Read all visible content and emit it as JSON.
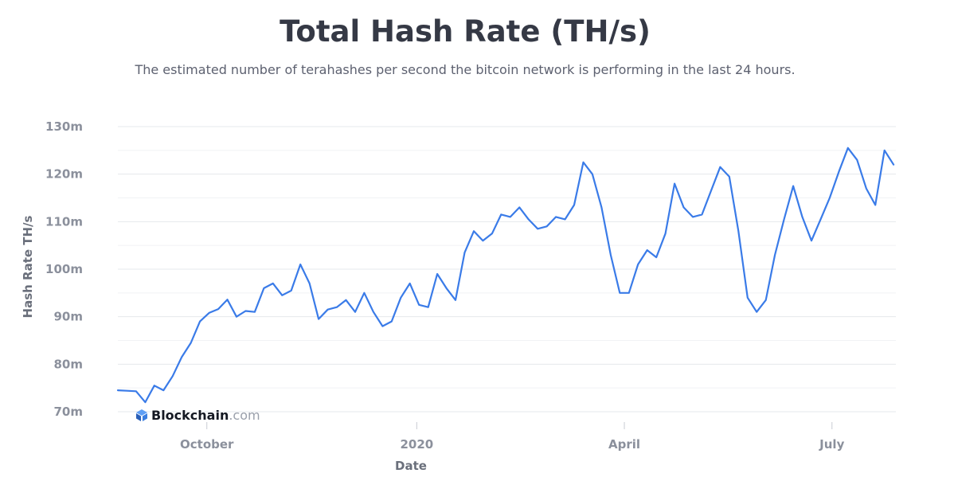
{
  "chart_data": {
    "type": "line",
    "title": "Total Hash Rate (TH/s)",
    "subtitle": "The estimated number of terahashes per second the bitcoin network is performing in the last 24 hours.",
    "xlabel": "Date",
    "ylabel": "Hash Rate TH/s",
    "ylim": [
      70,
      130
    ],
    "yticks": [
      70,
      80,
      90,
      100,
      110,
      120,
      130
    ],
    "ytick_labels": [
      "70m",
      "80m",
      "90m",
      "100m",
      "110m",
      "120m",
      "130m"
    ],
    "xlim": [
      "2019-08-23",
      "2020-07-29"
    ],
    "xticks": [
      "2019-10-01",
      "2020-01-01",
      "2020-04-01",
      "2020-07-01"
    ],
    "xtick_labels": [
      "October",
      "2020",
      "April",
      "July"
    ],
    "grid": true,
    "legend": "none",
    "line_color": "#3a7be8",
    "series": [
      {
        "x": [
          "2019-08-23",
          "2019-08-27",
          "2019-08-31",
          "2019-09-04",
          "2019-09-08",
          "2019-09-12",
          "2019-09-16",
          "2019-09-20",
          "2019-09-24",
          "2019-09-28",
          "2019-10-02",
          "2019-10-06",
          "2019-10-10",
          "2019-10-14",
          "2019-10-18",
          "2019-10-22",
          "2019-10-26",
          "2019-10-30",
          "2019-11-03",
          "2019-11-07",
          "2019-11-11",
          "2019-11-15",
          "2019-11-19",
          "2019-11-23",
          "2019-11-27",
          "2019-12-01",
          "2019-12-05",
          "2019-12-09",
          "2019-12-13",
          "2019-12-17",
          "2019-12-21",
          "2019-12-25",
          "2019-12-29",
          "2020-01-02",
          "2020-01-06",
          "2020-01-10",
          "2020-01-14",
          "2020-01-18",
          "2020-01-22",
          "2020-01-26",
          "2020-01-30",
          "2020-02-03",
          "2020-02-07",
          "2020-02-11",
          "2020-02-15",
          "2020-02-19",
          "2020-02-23",
          "2020-02-27",
          "2020-03-02",
          "2020-03-06",
          "2020-03-10",
          "2020-03-14",
          "2020-03-18",
          "2020-03-22",
          "2020-03-26",
          "2020-03-30",
          "2020-04-03",
          "2020-04-07",
          "2020-04-11",
          "2020-04-15",
          "2020-04-19",
          "2020-04-23",
          "2020-04-27",
          "2020-05-01",
          "2020-05-05",
          "2020-05-09",
          "2020-05-13",
          "2020-05-17",
          "2020-05-21",
          "2020-05-25",
          "2020-05-29",
          "2020-06-02",
          "2020-06-06",
          "2020-06-10",
          "2020-06-14",
          "2020-06-18",
          "2020-06-22",
          "2020-06-26",
          "2020-06-30",
          "2020-07-04",
          "2020-07-08",
          "2020-07-12",
          "2020-07-16",
          "2020-07-20",
          "2020-07-24",
          "2020-07-28"
        ],
        "values": [
          74.5,
          74.4,
          74.3,
          72.0,
          75.5,
          74.5,
          77.5,
          81.5,
          84.5,
          89.0,
          90.8,
          91.6,
          93.6,
          90.0,
          91.2,
          91.0,
          96.0,
          97.0,
          94.5,
          95.5,
          101.0,
          97.0,
          89.5,
          91.5,
          92.0,
          93.5,
          91.0,
          95.0,
          91.0,
          88.0,
          89.0,
          94.0,
          97.0,
          92.5,
          92.0,
          99.0,
          96.0,
          93.5,
          103.5,
          108.0,
          106.0,
          107.5,
          111.5,
          111.0,
          113.0,
          110.5,
          108.5,
          109.0,
          111.0,
          110.5,
          113.5,
          122.5,
          120.0,
          113.0,
          103.0,
          95.0,
          95.0,
          101.0,
          104.0,
          102.5,
          107.5,
          118.0,
          113.0,
          111.0,
          111.5,
          116.5,
          121.5,
          119.5,
          108.0,
          94.0,
          91.0,
          93.5,
          103.0,
          110.5,
          117.5,
          111.0,
          106.0,
          110.5,
          115.0,
          120.5,
          125.5,
          123.0,
          117.0,
          113.5,
          125.0,
          122.0
        ]
      }
    ]
  },
  "branding": {
    "name": "Blockchain",
    "suffix": ".com"
  }
}
